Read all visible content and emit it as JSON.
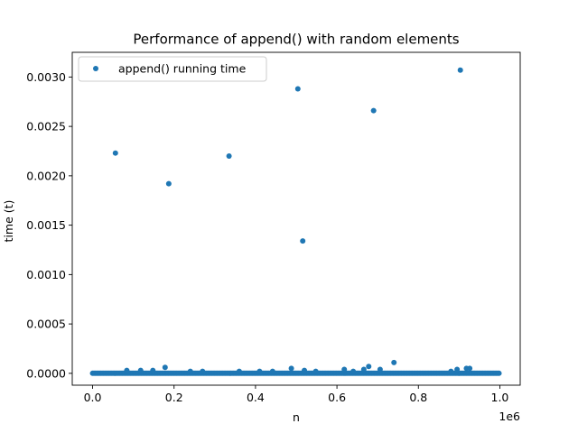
{
  "chart_data": {
    "type": "scatter",
    "title": "Performance of append() with random elements",
    "xlabel": "n",
    "ylabel": "time (t)",
    "x_offset_label": "1e6",
    "xlim": [
      -50000,
      1050000
    ],
    "ylim": [
      -0.00012,
      0.00325
    ],
    "x_ticks": [
      0,
      200000,
      400000,
      600000,
      800000,
      1000000
    ],
    "x_tick_labels": [
      "0.0",
      "0.2",
      "0.4",
      "0.6",
      "0.8",
      "1.0"
    ],
    "y_ticks": [
      0,
      0.0005,
      0.001,
      0.0015,
      0.002,
      0.0025,
      0.003
    ],
    "y_tick_labels": [
      "0.0000",
      "0.0005",
      "0.0010",
      "0.0015",
      "0.0020",
      "0.0025",
      "0.0030"
    ],
    "grid": false,
    "legend_position": "upper left",
    "series": [
      {
        "name": "append() running time",
        "color": "#1f77b4",
        "baseline": {
          "x_start": 0,
          "x_end": 1000000,
          "y": 5e-07
        },
        "outliers": [
          {
            "x": 56000,
            "y": 0.00223
          },
          {
            "x": 187000,
            "y": 0.00192
          },
          {
            "x": 335000,
            "y": 0.0022
          },
          {
            "x": 504000,
            "y": 0.00288
          },
          {
            "x": 516000,
            "y": 0.00134
          },
          {
            "x": 690000,
            "y": 0.00266
          },
          {
            "x": 903000,
            "y": 0.00307
          },
          {
            "x": 740000,
            "y": 0.00011
          },
          {
            "x": 678000,
            "y": 7e-05
          },
          {
            "x": 178000,
            "y": 6e-05
          },
          {
            "x": 488000,
            "y": 5e-05
          },
          {
            "x": 618000,
            "y": 4e-05
          },
          {
            "x": 666000,
            "y": 4e-05
          },
          {
            "x": 706000,
            "y": 4e-05
          },
          {
            "x": 918000,
            "y": 5e-05
          },
          {
            "x": 926000,
            "y": 5e-05
          },
          {
            "x": 895000,
            "y": 4e-05
          },
          {
            "x": 118000,
            "y": 3e-05
          },
          {
            "x": 148000,
            "y": 3e-05
          },
          {
            "x": 84000,
            "y": 3e-05
          },
          {
            "x": 270000,
            "y": 2e-05
          },
          {
            "x": 548000,
            "y": 2e-05
          },
          {
            "x": 410000,
            "y": 2e-05
          },
          {
            "x": 880000,
            "y": 2e-05
          },
          {
            "x": 240000,
            "y": 2e-05
          },
          {
            "x": 360000,
            "y": 2e-05
          },
          {
            "x": 442000,
            "y": 2e-05
          },
          {
            "x": 520000,
            "y": 3e-05
          },
          {
            "x": 640000,
            "y": 2e-05
          }
        ]
      }
    ]
  }
}
